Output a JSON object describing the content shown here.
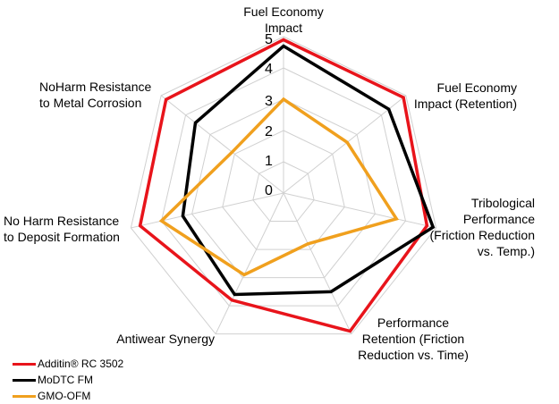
{
  "chart_data": {
    "type": "radar",
    "axes": [
      [
        "Fuel Economy",
        "Impact"
      ],
      [
        "Fuel Economy",
        "Impact (Retention)"
      ],
      [
        "Tribological",
        "Performance",
        "(Friction Reduction",
        "vs. Temp.)"
      ],
      [
        "Performance",
        "Retention (Friction",
        "Reduction vs. Time)"
      ],
      [
        "Antiwear Synergy"
      ],
      [
        "No Harm Resistance",
        "to Deposit Formation"
      ],
      [
        "NoHarm Resistance",
        "to Metal Corrosion"
      ]
    ],
    "ticks": [
      "0",
      "1",
      "2",
      "3",
      "4",
      "5"
    ],
    "rmax": 5,
    "grid": true,
    "legend_position": "bottom-left",
    "series": [
      {
        "name": "Additin® RC 3502",
        "color": "#e8141b",
        "values": [
          4.9,
          4.9,
          4.7,
          4.9,
          3.8,
          4.7,
          4.8
        ]
      },
      {
        "name": "MoDTC FM",
        "color": "#000000",
        "values": [
          4.7,
          4.3,
          4.9,
          3.5,
          3.6,
          3.3,
          3.6
        ]
      },
      {
        "name": "GMO-OFM",
        "color": "#f0a01e",
        "values": [
          3.0,
          2.6,
          3.7,
          1.8,
          2.9,
          4.0,
          2.1
        ]
      }
    ]
  }
}
